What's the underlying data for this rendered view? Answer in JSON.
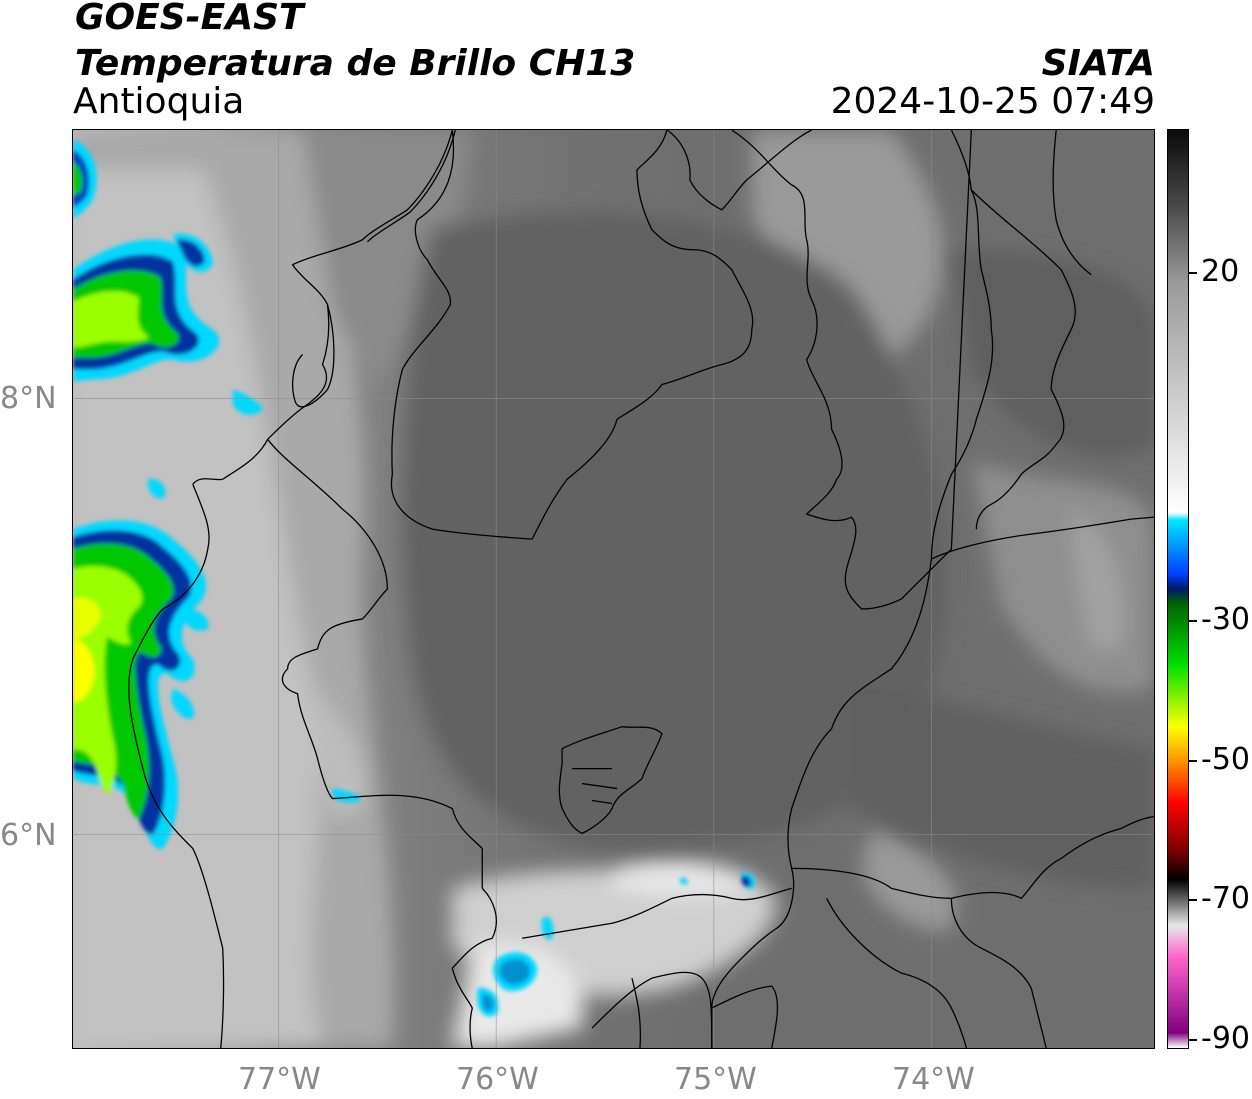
{
  "header": {
    "line1": "GOES-EAST",
    "line2": "Temperatura de Brillo CH13",
    "line3": "Antioquia",
    "org": "SIATA",
    "timestamp": "2024-10-25 07:49"
  },
  "axes": {
    "lon_labels": [
      "77°W",
      "76°W",
      "75°W",
      "74°W"
    ],
    "lat_labels": [
      "8°N",
      "6°N"
    ]
  },
  "colorbar": {
    "ticks": [
      "20",
      "-30",
      "-50",
      "-70",
      "-90"
    ],
    "stops": [
      {
        "value": 30,
        "color": "#0a0a0a"
      },
      {
        "value": 20,
        "color": "#4a4a4a"
      },
      {
        "value": 10,
        "color": "#9a9a9a"
      },
      {
        "value": -20,
        "color": "#ffffff"
      },
      {
        "value": -21,
        "color": "#00e5ff"
      },
      {
        "value": -28,
        "color": "#0040ff"
      },
      {
        "value": -30,
        "color": "#001a66"
      },
      {
        "value": -32,
        "color": "#006600"
      },
      {
        "value": -40,
        "color": "#00e000"
      },
      {
        "value": -48,
        "color": "#ffff00"
      },
      {
        "value": -52,
        "color": "#ffa000"
      },
      {
        "value": -58,
        "color": "#ff0000"
      },
      {
        "value": -64,
        "color": "#800000"
      },
      {
        "value": -68,
        "color": "#000000"
      },
      {
        "value": -74,
        "color": "#e8e8e8"
      },
      {
        "value": -78,
        "color": "#ff66cc"
      },
      {
        "value": -88,
        "color": "#800080"
      },
      {
        "value": -90,
        "color": "#ffffff"
      }
    ]
  },
  "colors": {
    "cold_cloud_core": "#d8ff00",
    "cold_cloud_mid": "#00c800",
    "cold_cloud_edge": "#0030a0",
    "cloud_rim": "#00d8ff",
    "background_land": "#6b6b6b",
    "warm_cloud": "#e8e8e8"
  }
}
